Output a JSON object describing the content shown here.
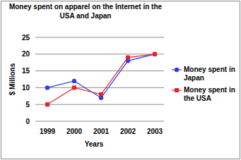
{
  "chart_data": {
    "type": "line",
    "title": "Money spent on apparel on the Internet in the USA and Japan",
    "x_label": "Years",
    "y_label": "$ Millions",
    "categories": [
      "1999",
      "2000",
      "2001",
      "2002",
      "2003"
    ],
    "series": [
      {
        "name": "Money spent in Japan",
        "color": "#2a3fe6",
        "marker": "circle",
        "line_style": "solid",
        "values": [
          10,
          12,
          7,
          18,
          20
        ]
      },
      {
        "name": "Money spent in the USA",
        "color": "#e3242b",
        "marker": "square",
        "line_style": "solid",
        "values": [
          5,
          10,
          8,
          19,
          20
        ]
      }
    ],
    "ylim": [
      0,
      25
    ],
    "yticks": [
      0,
      5,
      10,
      15,
      20,
      25
    ],
    "grid": true,
    "legend": "right"
  }
}
